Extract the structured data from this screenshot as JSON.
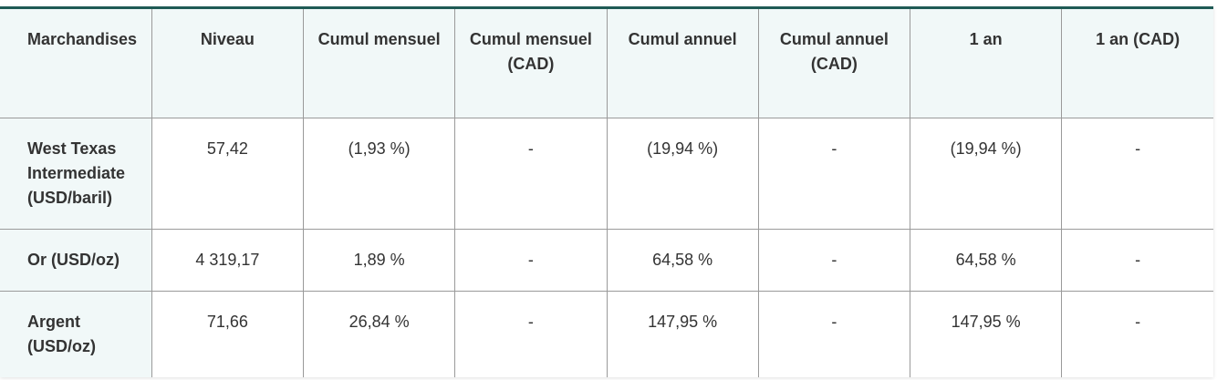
{
  "table": {
    "headers": [
      "Marchandises",
      "Niveau",
      "Cumul mensuel",
      "Cumul mensuel (CAD)",
      "Cumul annuel",
      "Cumul annuel (CAD)",
      "1 an",
      "1 an (CAD)"
    ],
    "rows": [
      [
        "West Texas Intermediate (USD/baril)",
        "57,42",
        "(1,93 %)",
        "-",
        "(19,94 %)",
        "-",
        "(19,94 %)",
        "-"
      ],
      [
        "Or (USD/oz)",
        "4 319,17",
        "1,89 %",
        "-",
        "64,58 %",
        "-",
        "64,58 %",
        "-"
      ],
      [
        "Argent (USD/oz)",
        "71,66",
        "26,84 %",
        "-",
        "147,95 %",
        "-",
        "147,95 %",
        "-"
      ]
    ]
  },
  "colors": {
    "accent": "#1f5a55",
    "header_bg": "#f1f8f8",
    "grid": "#9a9a9a"
  }
}
